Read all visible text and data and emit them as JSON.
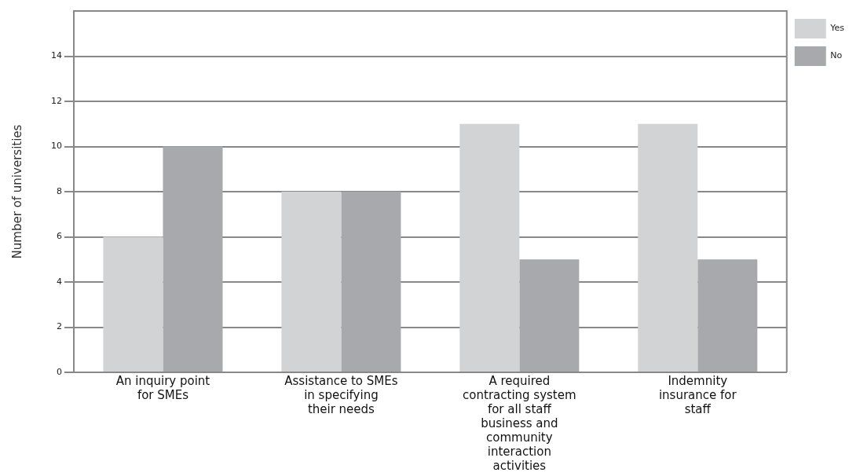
{
  "chart_data": {
    "type": "bar",
    "ylabel": "Number of universities",
    "categories": [
      "An inquiry point for SMEs",
      "Assistance to SMEs in specifying their needs",
      "A required contracting system for all staff business and community interaction activities",
      "Indemnity insurance for staff"
    ],
    "series": [
      {
        "name": "Yes",
        "color": "#d1d3d4",
        "values": [
          6,
          8,
          11,
          11
        ]
      },
      {
        "name": "No",
        "color": "#a7a9ac",
        "values": [
          10,
          8,
          5,
          5
        ]
      }
    ],
    "ylim": [
      0,
      16
    ],
    "yticks": [
      0,
      2,
      4,
      6,
      8,
      10,
      12,
      14
    ],
    "grid": "y",
    "legend": "top right"
  }
}
